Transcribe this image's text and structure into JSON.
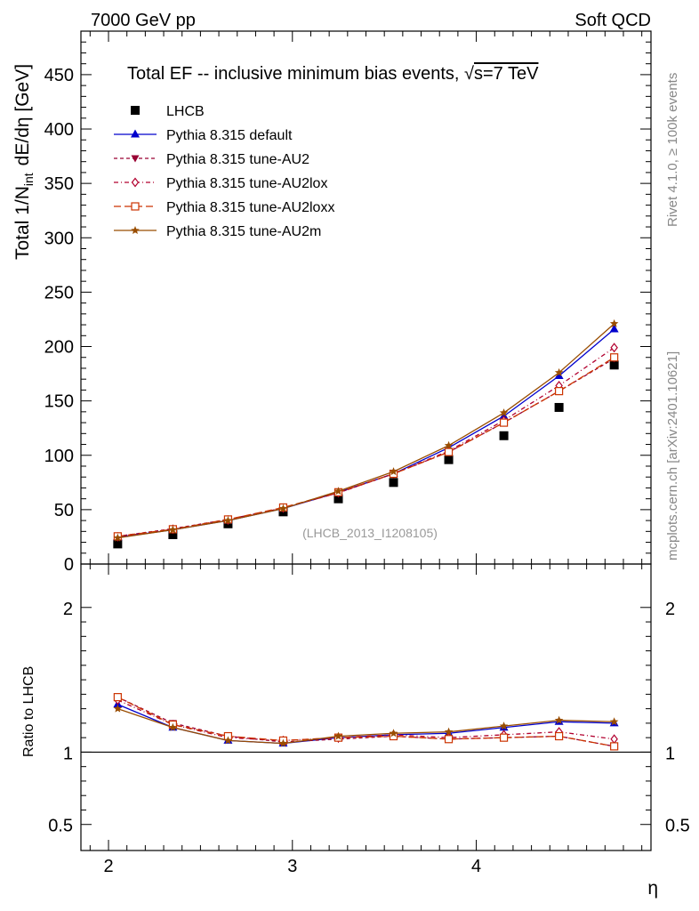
{
  "header": {
    "left": "7000 GeV pp",
    "right": "Soft QCD"
  },
  "side": {
    "rivet": "Rivet 4.1.0, ≥ 100k events",
    "mcplots": "mcplots.cern.ch [arXiv:2401.10621]"
  },
  "colors": {
    "default": "#0000cc",
    "au2": "#990033",
    "au2lox": "#b2002f",
    "au2loxx": "#cc3300",
    "au2m": "#994d00",
    "data": "#000000"
  },
  "chart_data": [
    {
      "type": "line",
      "title": "Total EF -- inclusive minimum bias events, √s=7 TeV",
      "title_parts": {
        "main": "Total EF -- inclusive minimum bias events, ",
        "sqrt": "√",
        "s_eq": "s=7 TeV"
      },
      "ylabel": "Total 1/N_int dE/dη [GeV]",
      "ylabel_parts": {
        "a": "Total 1/N",
        "sub": "int",
        "b": "dE/dη [GeV]"
      },
      "xlabel": "η",
      "xlim": [
        1.85,
        4.95
      ],
      "ylim": [
        0,
        490
      ],
      "yticks": [
        0,
        50,
        100,
        150,
        200,
        250,
        300,
        350,
        400,
        450
      ],
      "ytick_labels": [
        "0",
        "50",
        "100",
        "150",
        "200",
        "250",
        "300",
        "350",
        "400",
        "450"
      ],
      "annotation": "(LHCB_2013_I1208105)",
      "x": [
        2.05,
        2.35,
        2.65,
        2.95,
        3.25,
        3.55,
        3.85,
        4.15,
        4.45,
        4.75
      ],
      "series": [
        {
          "name": "LHCB",
          "key": "data",
          "marker": "square",
          "style": "none",
          "values": [
            18.5,
            27,
            37,
            48,
            60,
            75,
            96,
            118,
            144,
            183
          ]
        },
        {
          "name": "Pythia 8.315 default",
          "key": "default",
          "marker": "triangle",
          "style": "solid",
          "values": [
            24.5,
            31.5,
            40,
            51,
            66,
            83,
            107,
            136,
            173,
            216
          ]
        },
        {
          "name": "Pythia 8.315 tune-AU2",
          "key": "au2",
          "marker": "triangle-down",
          "style": "dash",
          "values": [
            25.5,
            32.5,
            41,
            51.5,
            65.5,
            83,
            103,
            130,
            159,
            189
          ]
        },
        {
          "name": "Pythia 8.315 tune-AU2lox",
          "key": "au2lox",
          "marker": "diamond-open",
          "style": "dashdot",
          "values": [
            25,
            32,
            40.5,
            51.5,
            65.5,
            83,
            104,
            132,
            164,
            199
          ]
        },
        {
          "name": "Pythia 8.315 tune-AU2loxx",
          "key": "au2loxx",
          "marker": "square-open",
          "style": "longdash",
          "values": [
            25.5,
            32,
            41,
            52,
            66,
            83,
            103,
            130,
            159,
            190
          ]
        },
        {
          "name": "Pythia 8.315 tune-AU2m",
          "key": "au2m",
          "marker": "star",
          "style": "solid",
          "values": [
            24,
            31.5,
            40,
            51,
            67,
            85,
            109,
            139,
            176,
            221
          ]
        }
      ]
    },
    {
      "type": "line",
      "ylabel": "Ratio to LHCB",
      "ylim": [
        0.32,
        2.3
      ],
      "yticks": [
        0.5,
        1,
        2
      ],
      "ytick_labels": [
        "0.5",
        "1",
        "2"
      ],
      "xticks": [
        2,
        3,
        4
      ],
      "xtick_labels": [
        "2",
        "3",
        "4"
      ],
      "x": [
        2.05,
        2.35,
        2.65,
        2.95,
        3.25,
        3.55,
        3.85,
        4.15,
        4.45,
        4.75
      ],
      "series": [
        {
          "name": "Pythia 8.315 default",
          "key": "default",
          "marker": "triangle",
          "style": "solid",
          "values": [
            1.33,
            1.17,
            1.08,
            1.06,
            1.1,
            1.12,
            1.13,
            1.17,
            1.21,
            1.2
          ]
        },
        {
          "name": "Pythia 8.315 tune-AU2",
          "key": "au2",
          "marker": "triangle-down",
          "style": "dash",
          "values": [
            1.38,
            1.2,
            1.11,
            1.07,
            1.09,
            1.11,
            1.09,
            1.1,
            1.11,
            1.04
          ]
        },
        {
          "name": "Pythia 8.315 tune-AU2lox",
          "key": "au2lox",
          "marker": "diamond-open",
          "style": "dashdot",
          "values": [
            1.36,
            1.19,
            1.1,
            1.08,
            1.1,
            1.12,
            1.1,
            1.12,
            1.14,
            1.09
          ]
        },
        {
          "name": "Pythia 8.315 tune-AU2loxx",
          "key": "au2loxx",
          "marker": "square-open",
          "style": "longdash",
          "values": [
            1.38,
            1.19,
            1.11,
            1.08,
            1.1,
            1.11,
            1.09,
            1.1,
            1.11,
            1.04
          ]
        },
        {
          "name": "Pythia 8.315 tune-AU2m",
          "key": "au2m",
          "marker": "star",
          "style": "solid",
          "values": [
            1.3,
            1.17,
            1.08,
            1.06,
            1.11,
            1.13,
            1.14,
            1.18,
            1.22,
            1.21
          ]
        }
      ]
    }
  ]
}
